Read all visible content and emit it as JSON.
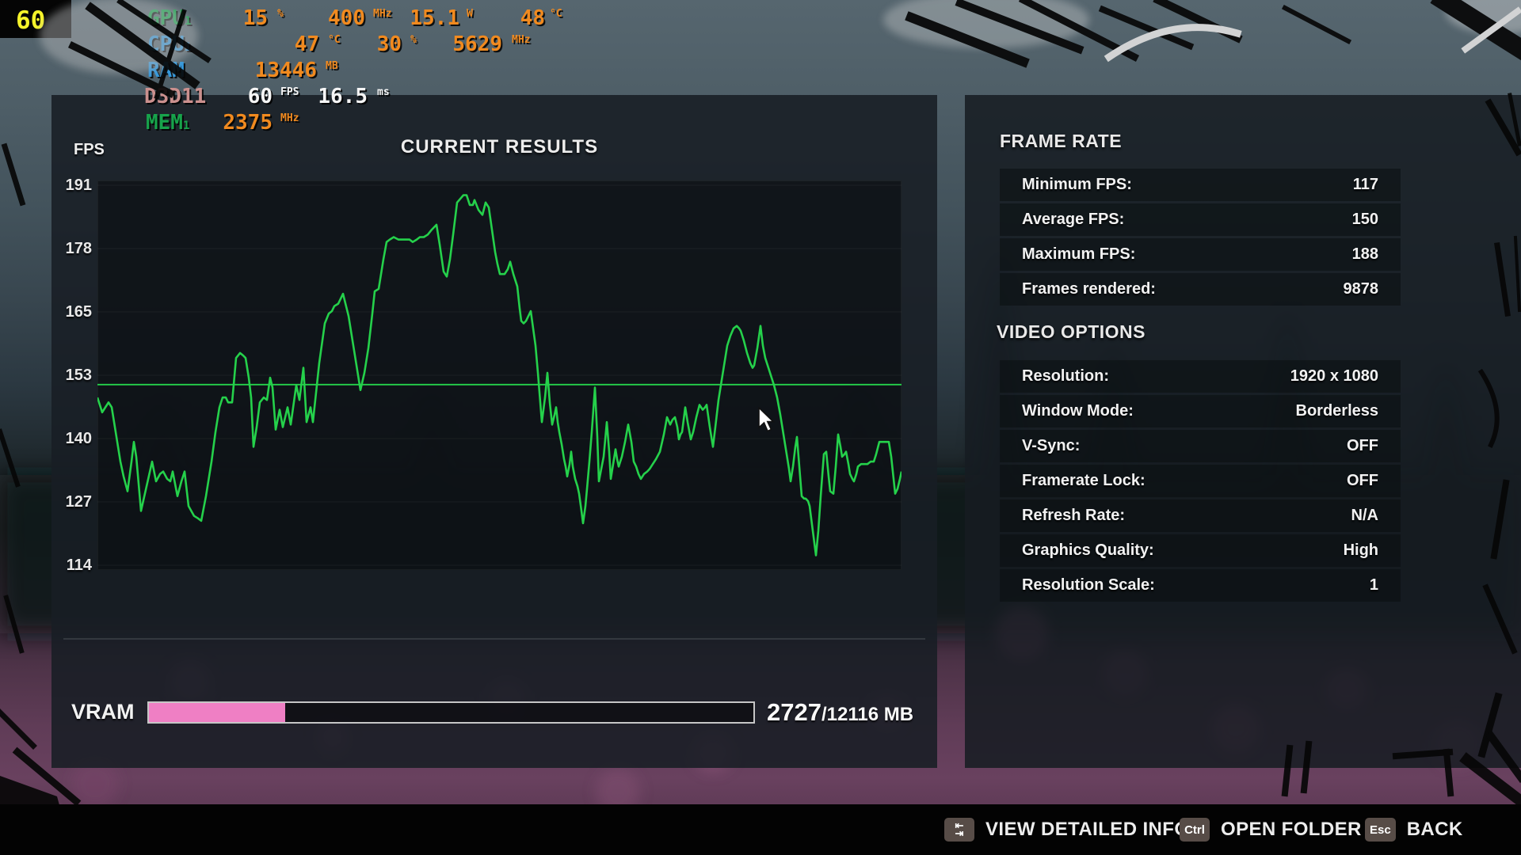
{
  "fps_counter": "60",
  "osd": {
    "rows": [
      {
        "label": "GPU",
        "sub": "1",
        "color": "#17a34b",
        "cells": [
          {
            "v": "15",
            "u": "%"
          },
          {
            "v": "400",
            "u": "MHz"
          },
          {
            "v": "15.1",
            "u": "W"
          },
          {
            "v": "48",
            "u": "°C"
          }
        ]
      },
      {
        "label": "CPU",
        "sub": "1",
        "color": "#3498db",
        "cells": [
          {
            "v": "47",
            "u": "°C"
          },
          {
            "v": "30",
            "u": "%"
          },
          {
            "v": "5629",
            "u": "MHz"
          }
        ]
      },
      {
        "label": "RAM",
        "sub": "",
        "color": "#3498db",
        "cells": [
          {
            "v": "13446",
            "u": "MB"
          }
        ]
      },
      {
        "label": "D3D11",
        "sub": "",
        "color": "#cb908e",
        "cells": [
          {
            "v": "60",
            "u": "FPS",
            "white": true
          },
          {
            "v": "16.5",
            "u": "ms",
            "white": true
          }
        ]
      },
      {
        "label": "MEM",
        "sub": "1",
        "color": "#17a34b",
        "cells": [
          {
            "v": "2375",
            "u": "MHz"
          }
        ]
      }
    ]
  },
  "chart_data": {
    "type": "line",
    "title": "CURRENT RESULTS",
    "y_axis_title": "FPS",
    "y_ticks": [
      191,
      178,
      165,
      153,
      140,
      127,
      114
    ],
    "y_range": [
      114,
      191
    ],
    "average_fps_line": 150.6,
    "line_color": "#25d14b",
    "series": [
      {
        "name": "FPS",
        "points": [
          [
            0,
            148
          ],
          [
            6,
            145
          ],
          [
            10,
            146
          ],
          [
            14,
            147
          ],
          [
            18,
            146
          ],
          [
            24,
            140
          ],
          [
            29,
            135
          ],
          [
            33,
            132
          ],
          [
            38,
            129
          ],
          [
            43,
            135
          ],
          [
            46,
            139
          ],
          [
            49,
            136
          ],
          [
            55,
            125
          ],
          [
            62,
            130
          ],
          [
            69,
            135
          ],
          [
            74,
            131
          ],
          [
            79,
            132.5
          ],
          [
            83,
            133
          ],
          [
            88,
            131.5
          ],
          [
            92,
            131
          ],
          [
            95,
            133
          ],
          [
            101,
            128
          ],
          [
            106,
            131
          ],
          [
            110,
            133
          ],
          [
            115,
            126
          ],
          [
            122,
            124
          ],
          [
            127,
            123.5
          ],
          [
            131,
            123
          ],
          [
            137,
            128
          ],
          [
            144,
            135
          ],
          [
            149,
            141
          ],
          [
            154,
            146
          ],
          [
            158,
            148
          ],
          [
            162,
            148
          ],
          [
            165,
            147
          ],
          [
            170,
            147
          ],
          [
            175,
            156
          ],
          [
            180,
            157
          ],
          [
            184,
            156.5
          ],
          [
            187,
            156
          ],
          [
            191,
            152
          ],
          [
            194,
            148
          ],
          [
            197,
            138
          ],
          [
            201,
            142
          ],
          [
            205,
            147
          ],
          [
            210,
            148
          ],
          [
            214,
            147.5
          ],
          [
            218,
            152
          ],
          [
            221,
            150
          ],
          [
            225,
            141.5
          ],
          [
            230,
            145.5
          ],
          [
            234,
            142
          ],
          [
            240,
            146
          ],
          [
            244,
            142.5
          ],
          [
            251,
            150.5
          ],
          [
            255,
            147.5
          ],
          [
            260,
            154
          ],
          [
            264,
            143
          ],
          [
            269,
            146
          ],
          [
            272,
            143
          ],
          [
            277,
            150.5
          ],
          [
            280,
            155
          ],
          [
            287,
            163
          ],
          [
            292,
            165
          ],
          [
            296,
            165.5
          ],
          [
            299,
            166.5
          ],
          [
            304,
            167
          ],
          [
            310,
            169
          ],
          [
            317,
            164.5
          ],
          [
            325,
            156.5
          ],
          [
            332,
            149.5
          ],
          [
            337,
            153
          ],
          [
            342,
            158
          ],
          [
            347,
            165
          ],
          [
            350,
            169.5
          ],
          [
            355,
            170
          ],
          [
            357,
            172
          ],
          [
            361,
            176
          ],
          [
            365,
            179.5
          ],
          [
            369,
            180
          ],
          [
            374,
            180.5
          ],
          [
            380,
            180
          ],
          [
            386,
            180
          ],
          [
            394,
            180
          ],
          [
            398,
            179.5
          ],
          [
            403,
            180
          ],
          [
            407,
            180.5
          ],
          [
            412,
            180.5
          ],
          [
            417,
            181
          ],
          [
            422,
            182
          ],
          [
            428,
            183
          ],
          [
            432,
            179
          ],
          [
            437,
            173.5
          ],
          [
            441,
            172.5
          ],
          [
            445,
            176
          ],
          [
            449,
            181
          ],
          [
            454,
            187.5
          ],
          [
            462,
            189
          ],
          [
            466,
            189
          ],
          [
            470,
            187
          ],
          [
            474,
            187
          ],
          [
            476,
            188
          ],
          [
            481,
            186
          ],
          [
            486,
            185
          ],
          [
            490,
            187.5
          ],
          [
            494,
            186.5
          ],
          [
            498,
            182
          ],
          [
            502,
            177.5
          ],
          [
            505,
            175
          ],
          [
            508,
            173
          ],
          [
            511,
            173
          ],
          [
            514,
            173
          ],
          [
            518,
            174
          ],
          [
            521,
            175.5
          ],
          [
            525,
            173
          ],
          [
            530,
            170.5
          ],
          [
            533,
            166
          ],
          [
            535,
            163.5
          ],
          [
            538,
            163
          ],
          [
            541,
            163.5
          ],
          [
            544,
            164.5
          ],
          [
            547,
            165.5
          ],
          [
            550,
            162
          ],
          [
            553,
            158.5
          ],
          [
            556,
            153
          ],
          [
            559,
            147
          ],
          [
            561,
            143
          ],
          [
            565,
            148
          ],
          [
            568,
            153
          ],
          [
            571,
            147
          ],
          [
            574,
            142.5
          ],
          [
            577,
            144.5
          ],
          [
            579,
            146
          ],
          [
            581,
            143
          ],
          [
            583,
            141
          ],
          [
            586,
            138.5
          ],
          [
            589,
            135.5
          ],
          [
            591,
            134
          ],
          [
            593,
            132
          ],
          [
            596,
            134.5
          ],
          [
            598,
            137
          ],
          [
            600,
            134
          ],
          [
            603,
            131.5
          ],
          [
            606,
            130
          ],
          [
            608,
            128.5
          ],
          [
            611,
            125
          ],
          [
            613,
            122.5
          ],
          [
            616,
            126
          ],
          [
            618,
            129.5
          ],
          [
            621,
            135
          ],
          [
            624,
            141
          ],
          [
            628,
            150
          ],
          [
            631,
            140
          ],
          [
            633,
            131
          ],
          [
            636,
            133.5
          ],
          [
            639,
            136
          ],
          [
            643,
            143
          ],
          [
            646,
            137
          ],
          [
            648,
            131.5
          ],
          [
            651,
            134.5
          ],
          [
            654,
            137.5
          ],
          [
            656,
            135.5
          ],
          [
            658,
            134
          ],
          [
            662,
            136
          ],
          [
            666,
            139
          ],
          [
            670,
            142.5
          ],
          [
            674,
            139
          ],
          [
            677,
            135
          ],
          [
            680,
            134
          ],
          [
            683,
            132.5
          ],
          [
            686,
            131.5
          ],
          [
            690,
            132.5
          ],
          [
            694,
            133
          ],
          [
            697,
            133.5
          ],
          [
            701,
            134.5
          ],
          [
            705,
            135.5
          ],
          [
            710,
            137
          ],
          [
            715,
            140.5
          ],
          [
            719,
            144
          ],
          [
            723,
            142.5
          ],
          [
            726,
            143.5
          ],
          [
            729,
            144
          ],
          [
            732,
            142
          ],
          [
            734,
            139.5
          ],
          [
            736,
            140.5
          ],
          [
            738,
            141
          ],
          [
            742,
            146
          ],
          [
            745,
            143
          ],
          [
            749,
            139.5
          ],
          [
            752,
            141
          ],
          [
            756,
            144
          ],
          [
            760,
            146.5
          ],
          [
            762,
            146
          ],
          [
            764,
            145.5
          ],
          [
            767,
            146
          ],
          [
            769,
            146.5
          ],
          [
            773,
            142
          ],
          [
            777,
            138
          ],
          [
            780,
            142
          ],
          [
            784,
            147.5
          ],
          [
            788,
            151.5
          ],
          [
            792,
            155.5
          ],
          [
            795,
            158.5
          ],
          [
            799,
            160.5
          ],
          [
            803,
            162
          ],
          [
            807,
            162.5
          ],
          [
            810,
            162
          ],
          [
            812,
            161.5
          ],
          [
            816,
            159.5
          ],
          [
            820,
            157
          ],
          [
            824,
            155
          ],
          [
            827,
            154
          ],
          [
            829,
            154.5
          ],
          [
            833,
            158
          ],
          [
            837,
            162.5
          ],
          [
            840,
            158.5
          ],
          [
            843,
            156
          ],
          [
            847,
            154
          ],
          [
            851,
            152
          ],
          [
            854,
            150.5
          ],
          [
            858,
            148
          ],
          [
            862,
            144.5
          ],
          [
            865,
            141.5
          ],
          [
            868,
            138.5
          ],
          [
            870,
            136.5
          ],
          [
            873,
            133.5
          ],
          [
            875,
            131
          ],
          [
            878,
            134
          ],
          [
            881,
            138
          ],
          [
            883,
            140
          ],
          [
            886,
            134
          ],
          [
            889,
            128
          ],
          [
            892,
            127.5
          ],
          [
            894,
            127.5
          ],
          [
            897,
            127
          ],
          [
            899,
            126
          ],
          [
            903,
            121
          ],
          [
            907,
            116
          ],
          [
            910,
            121
          ],
          [
            913,
            128
          ],
          [
            917,
            136.5
          ],
          [
            920,
            137
          ],
          [
            923,
            132
          ],
          [
            925,
            129
          ],
          [
            929,
            128.5
          ],
          [
            932,
            134
          ],
          [
            935,
            140.5
          ],
          [
            938,
            138
          ],
          [
            940,
            136
          ],
          [
            943,
            136.5
          ],
          [
            945,
            137
          ],
          [
            948,
            134.5
          ],
          [
            950,
            132.5
          ],
          [
            953,
            131.5
          ],
          [
            955,
            131
          ],
          [
            958,
            132.5
          ],
          [
            960,
            134
          ],
          [
            964,
            134.5
          ],
          [
            968,
            134.5
          ],
          [
            972,
            134.5
          ],
          [
            976,
            135
          ],
          [
            980,
            135
          ],
          [
            983,
            136.5
          ],
          [
            987,
            139
          ],
          [
            991,
            139
          ],
          [
            995,
            139
          ],
          [
            999,
            139
          ],
          [
            1002,
            136
          ],
          [
            1005,
            131.5
          ],
          [
            1007,
            128.5
          ],
          [
            1010,
            129.5
          ],
          [
            1013,
            131.5
          ],
          [
            1015,
            133
          ]
        ]
      }
    ]
  },
  "frame_rate": {
    "title": "FRAME RATE",
    "rows": [
      [
        "Minimum FPS:",
        "117"
      ],
      [
        "Average FPS:",
        "150"
      ],
      [
        "Maximum FPS:",
        "188"
      ],
      [
        "Frames rendered:",
        "9878"
      ]
    ]
  },
  "video_options": {
    "title": "VIDEO OPTIONS",
    "rows": [
      [
        "Resolution:",
        "1920 x 1080"
      ],
      [
        "Window Mode:",
        "Borderless"
      ],
      [
        "V-Sync:",
        "OFF"
      ],
      [
        "Framerate Lock:",
        "OFF"
      ],
      [
        "Refresh Rate:",
        "N/A"
      ],
      [
        "Graphics Quality:",
        "High"
      ],
      [
        "Resolution Scale:",
        "1"
      ]
    ]
  },
  "vram": {
    "label": "VRAM",
    "used": 2727,
    "total": 12116,
    "used_text": "2727",
    "rest_text": "/12116 MB",
    "fill_color": "#ef7fc4"
  },
  "footer": {
    "items": [
      {
        "key": "tab",
        "label": "VIEW DETAILED INFO"
      },
      {
        "key": "Ctrl",
        "label": "OPEN FOLDER"
      },
      {
        "key": "Esc",
        "label": "BACK"
      }
    ]
  }
}
